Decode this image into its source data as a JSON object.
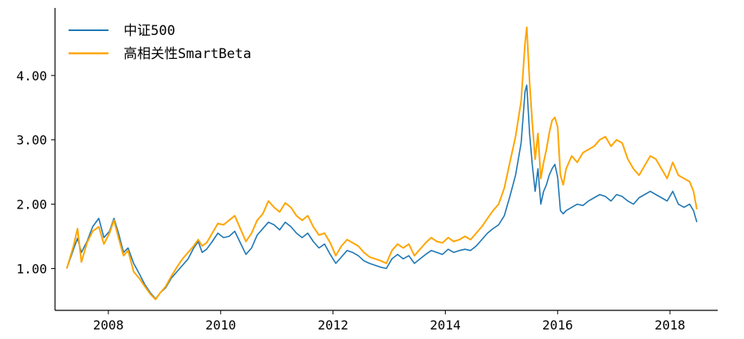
{
  "chart_data": {
    "type": "line",
    "title": "",
    "xlabel": "",
    "ylabel": "",
    "xlim": [
      2007.05,
      2018.85
    ],
    "ylim": [
      0.35,
      5.05
    ],
    "x_ticks": [
      2008,
      2010,
      2012,
      2014,
      2016,
      2018
    ],
    "x_tick_labels": [
      "2008",
      "2010",
      "2012",
      "2014",
      "2016",
      "2018"
    ],
    "y_ticks": [
      1,
      2,
      3,
      4
    ],
    "y_tick_labels": [
      "1.00",
      "2.00",
      "3.00",
      "4.00"
    ],
    "grid": false,
    "legend_position": "top-left",
    "series": [
      {
        "name": "中证500",
        "color": "#1f77b4",
        "points": [
          [
            2007.26,
            1.0
          ],
          [
            2007.38,
            1.3
          ],
          [
            2007.45,
            1.47
          ],
          [
            2007.52,
            1.25
          ],
          [
            2007.62,
            1.42
          ],
          [
            2007.72,
            1.65
          ],
          [
            2007.83,
            1.78
          ],
          [
            2007.92,
            1.48
          ],
          [
            2008.02,
            1.58
          ],
          [
            2008.1,
            1.78
          ],
          [
            2008.18,
            1.55
          ],
          [
            2008.27,
            1.25
          ],
          [
            2008.35,
            1.32
          ],
          [
            2008.45,
            1.08
          ],
          [
            2008.55,
            0.92
          ],
          [
            2008.65,
            0.75
          ],
          [
            2008.75,
            0.62
          ],
          [
            2008.84,
            0.53
          ],
          [
            2008.92,
            0.62
          ],
          [
            2009.02,
            0.7
          ],
          [
            2009.12,
            0.85
          ],
          [
            2009.22,
            0.95
          ],
          [
            2009.32,
            1.05
          ],
          [
            2009.42,
            1.15
          ],
          [
            2009.52,
            1.32
          ],
          [
            2009.6,
            1.42
          ],
          [
            2009.67,
            1.25
          ],
          [
            2009.75,
            1.3
          ],
          [
            2009.85,
            1.42
          ],
          [
            2009.95,
            1.55
          ],
          [
            2010.05,
            1.48
          ],
          [
            2010.15,
            1.5
          ],
          [
            2010.25,
            1.58
          ],
          [
            2010.35,
            1.4
          ],
          [
            2010.45,
            1.22
          ],
          [
            2010.55,
            1.32
          ],
          [
            2010.65,
            1.52
          ],
          [
            2010.75,
            1.62
          ],
          [
            2010.85,
            1.72
          ],
          [
            2010.95,
            1.68
          ],
          [
            2011.05,
            1.6
          ],
          [
            2011.15,
            1.72
          ],
          [
            2011.25,
            1.65
          ],
          [
            2011.35,
            1.55
          ],
          [
            2011.45,
            1.48
          ],
          [
            2011.55,
            1.55
          ],
          [
            2011.65,
            1.42
          ],
          [
            2011.75,
            1.32
          ],
          [
            2011.85,
            1.38
          ],
          [
            2011.95,
            1.22
          ],
          [
            2012.05,
            1.08
          ],
          [
            2012.15,
            1.18
          ],
          [
            2012.25,
            1.28
          ],
          [
            2012.35,
            1.25
          ],
          [
            2012.45,
            1.2
          ],
          [
            2012.55,
            1.12
          ],
          [
            2012.65,
            1.08
          ],
          [
            2012.75,
            1.05
          ],
          [
            2012.85,
            1.02
          ],
          [
            2012.95,
            1.0
          ],
          [
            2013.05,
            1.15
          ],
          [
            2013.15,
            1.22
          ],
          [
            2013.25,
            1.15
          ],
          [
            2013.35,
            1.2
          ],
          [
            2013.45,
            1.08
          ],
          [
            2013.55,
            1.15
          ],
          [
            2013.65,
            1.22
          ],
          [
            2013.75,
            1.28
          ],
          [
            2013.85,
            1.25
          ],
          [
            2013.95,
            1.22
          ],
          [
            2014.05,
            1.3
          ],
          [
            2014.15,
            1.25
          ],
          [
            2014.25,
            1.28
          ],
          [
            2014.35,
            1.3
          ],
          [
            2014.45,
            1.28
          ],
          [
            2014.55,
            1.35
          ],
          [
            2014.65,
            1.45
          ],
          [
            2014.75,
            1.55
          ],
          [
            2014.85,
            1.62
          ],
          [
            2014.95,
            1.68
          ],
          [
            2015.05,
            1.82
          ],
          [
            2015.15,
            2.12
          ],
          [
            2015.25,
            2.45
          ],
          [
            2015.35,
            2.95
          ],
          [
            2015.42,
            3.75
          ],
          [
            2015.45,
            3.85
          ],
          [
            2015.5,
            3.1
          ],
          [
            2015.55,
            2.6
          ],
          [
            2015.6,
            2.2
          ],
          [
            2015.65,
            2.55
          ],
          [
            2015.7,
            2.0
          ],
          [
            2015.75,
            2.2
          ],
          [
            2015.8,
            2.3
          ],
          [
            2015.85,
            2.45
          ],
          [
            2015.9,
            2.55
          ],
          [
            2015.95,
            2.62
          ],
          [
            2016.0,
            2.42
          ],
          [
            2016.05,
            1.9
          ],
          [
            2016.1,
            1.85
          ],
          [
            2016.15,
            1.9
          ],
          [
            2016.25,
            1.95
          ],
          [
            2016.35,
            2.0
          ],
          [
            2016.45,
            1.98
          ],
          [
            2016.55,
            2.05
          ],
          [
            2016.65,
            2.1
          ],
          [
            2016.75,
            2.15
          ],
          [
            2016.85,
            2.12
          ],
          [
            2016.95,
            2.05
          ],
          [
            2017.05,
            2.15
          ],
          [
            2017.15,
            2.12
          ],
          [
            2017.25,
            2.05
          ],
          [
            2017.35,
            2.0
          ],
          [
            2017.45,
            2.1
          ],
          [
            2017.55,
            2.15
          ],
          [
            2017.65,
            2.2
          ],
          [
            2017.75,
            2.15
          ],
          [
            2017.85,
            2.1
          ],
          [
            2017.95,
            2.05
          ],
          [
            2018.05,
            2.2
          ],
          [
            2018.15,
            2.0
          ],
          [
            2018.25,
            1.95
          ],
          [
            2018.35,
            2.0
          ],
          [
            2018.42,
            1.9
          ],
          [
            2018.48,
            1.72
          ]
        ]
      },
      {
        "name": "高相关性SmartBeta",
        "color": "#ffa500",
        "points": [
          [
            2007.26,
            1.0
          ],
          [
            2007.38,
            1.35
          ],
          [
            2007.45,
            1.62
          ],
          [
            2007.52,
            1.1
          ],
          [
            2007.62,
            1.4
          ],
          [
            2007.72,
            1.58
          ],
          [
            2007.83,
            1.65
          ],
          [
            2007.92,
            1.38
          ],
          [
            2008.02,
            1.55
          ],
          [
            2008.1,
            1.75
          ],
          [
            2008.18,
            1.48
          ],
          [
            2008.27,
            1.2
          ],
          [
            2008.35,
            1.28
          ],
          [
            2008.45,
            0.95
          ],
          [
            2008.55,
            0.85
          ],
          [
            2008.65,
            0.72
          ],
          [
            2008.75,
            0.6
          ],
          [
            2008.84,
            0.52
          ],
          [
            2008.92,
            0.62
          ],
          [
            2009.02,
            0.72
          ],
          [
            2009.12,
            0.88
          ],
          [
            2009.22,
            1.02
          ],
          [
            2009.32,
            1.15
          ],
          [
            2009.42,
            1.25
          ],
          [
            2009.52,
            1.35
          ],
          [
            2009.6,
            1.45
          ],
          [
            2009.67,
            1.35
          ],
          [
            2009.75,
            1.4
          ],
          [
            2009.85,
            1.55
          ],
          [
            2009.95,
            1.7
          ],
          [
            2010.05,
            1.68
          ],
          [
            2010.15,
            1.75
          ],
          [
            2010.25,
            1.82
          ],
          [
            2010.35,
            1.62
          ],
          [
            2010.45,
            1.42
          ],
          [
            2010.55,
            1.55
          ],
          [
            2010.65,
            1.75
          ],
          [
            2010.75,
            1.85
          ],
          [
            2010.85,
            2.05
          ],
          [
            2010.95,
            1.95
          ],
          [
            2011.05,
            1.88
          ],
          [
            2011.15,
            2.02
          ],
          [
            2011.25,
            1.95
          ],
          [
            2011.35,
            1.82
          ],
          [
            2011.45,
            1.75
          ],
          [
            2011.55,
            1.82
          ],
          [
            2011.65,
            1.65
          ],
          [
            2011.75,
            1.52
          ],
          [
            2011.85,
            1.55
          ],
          [
            2011.95,
            1.4
          ],
          [
            2012.05,
            1.2
          ],
          [
            2012.15,
            1.35
          ],
          [
            2012.25,
            1.45
          ],
          [
            2012.35,
            1.4
          ],
          [
            2012.45,
            1.35
          ],
          [
            2012.55,
            1.25
          ],
          [
            2012.65,
            1.18
          ],
          [
            2012.75,
            1.15
          ],
          [
            2012.85,
            1.12
          ],
          [
            2012.95,
            1.08
          ],
          [
            2013.05,
            1.28
          ],
          [
            2013.15,
            1.38
          ],
          [
            2013.25,
            1.32
          ],
          [
            2013.35,
            1.38
          ],
          [
            2013.45,
            1.2
          ],
          [
            2013.55,
            1.3
          ],
          [
            2013.65,
            1.4
          ],
          [
            2013.75,
            1.48
          ],
          [
            2013.85,
            1.42
          ],
          [
            2013.95,
            1.4
          ],
          [
            2014.05,
            1.48
          ],
          [
            2014.15,
            1.42
          ],
          [
            2014.25,
            1.45
          ],
          [
            2014.35,
            1.5
          ],
          [
            2014.45,
            1.45
          ],
          [
            2014.55,
            1.55
          ],
          [
            2014.65,
            1.65
          ],
          [
            2014.75,
            1.78
          ],
          [
            2014.85,
            1.9
          ],
          [
            2014.95,
            2.0
          ],
          [
            2015.05,
            2.25
          ],
          [
            2015.15,
            2.65
          ],
          [
            2015.25,
            3.05
          ],
          [
            2015.35,
            3.6
          ],
          [
            2015.42,
            4.5
          ],
          [
            2015.45,
            4.75
          ],
          [
            2015.5,
            3.9
          ],
          [
            2015.55,
            3.25
          ],
          [
            2015.6,
            2.7
          ],
          [
            2015.65,
            3.1
          ],
          [
            2015.7,
            2.4
          ],
          [
            2015.75,
            2.65
          ],
          [
            2015.8,
            2.85
          ],
          [
            2015.85,
            3.1
          ],
          [
            2015.9,
            3.3
          ],
          [
            2015.95,
            3.35
          ],
          [
            2016.0,
            3.2
          ],
          [
            2016.05,
            2.45
          ],
          [
            2016.1,
            2.3
          ],
          [
            2016.15,
            2.55
          ],
          [
            2016.25,
            2.75
          ],
          [
            2016.35,
            2.65
          ],
          [
            2016.45,
            2.8
          ],
          [
            2016.55,
            2.85
          ],
          [
            2016.65,
            2.9
          ],
          [
            2016.75,
            3.0
          ],
          [
            2016.85,
            3.05
          ],
          [
            2016.95,
            2.9
          ],
          [
            2017.05,
            3.0
          ],
          [
            2017.15,
            2.95
          ],
          [
            2017.25,
            2.7
          ],
          [
            2017.35,
            2.55
          ],
          [
            2017.45,
            2.45
          ],
          [
            2017.55,
            2.6
          ],
          [
            2017.65,
            2.75
          ],
          [
            2017.75,
            2.7
          ],
          [
            2017.85,
            2.55
          ],
          [
            2017.95,
            2.4
          ],
          [
            2018.05,
            2.65
          ],
          [
            2018.15,
            2.45
          ],
          [
            2018.25,
            2.4
          ],
          [
            2018.35,
            2.35
          ],
          [
            2018.42,
            2.2
          ],
          [
            2018.48,
            1.92
          ]
        ]
      }
    ]
  }
}
